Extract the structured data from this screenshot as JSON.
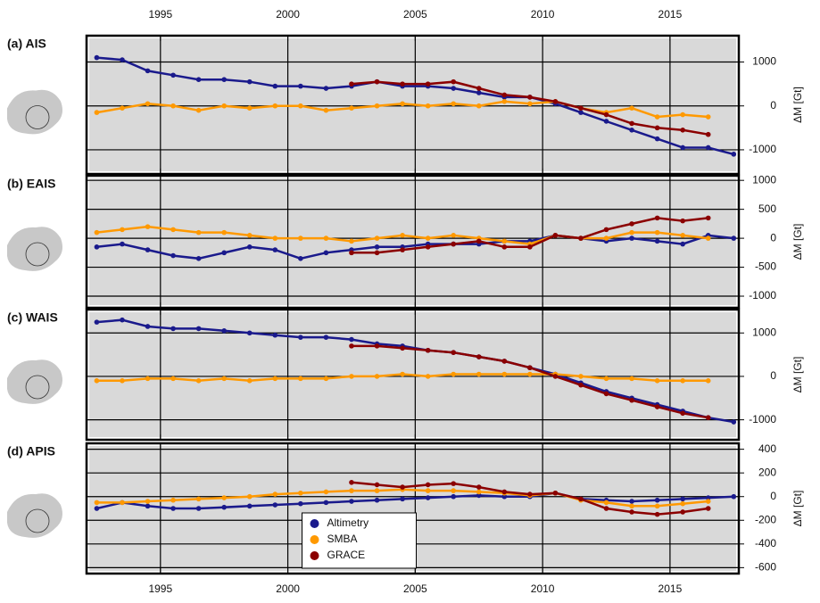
{
  "chart_data": [
    {
      "type": "line",
      "title": "(a) AIS",
      "ylabel": "ΔM [Gt]",
      "x": [
        1992.5,
        1993.5,
        1994.5,
        1995.5,
        1996.5,
        1997.5,
        1998.5,
        1999.5,
        2000.5,
        2001.5,
        2002.5,
        2003.5,
        2004.5,
        2005.5,
        2006.5,
        2007.5,
        2008.5,
        2009.5,
        2010.5,
        2011.5,
        2012.5,
        2013.5,
        2014.5,
        2015.5,
        2016.5,
        2017.5
      ],
      "series": [
        {
          "name": "Altimetry",
          "color": "#1a1a8c",
          "values": [
            1100,
            1050,
            800,
            700,
            600,
            600,
            550,
            450,
            450,
            400,
            450,
            550,
            450,
            450,
            400,
            300,
            200,
            200,
            50,
            -150,
            -350,
            -550,
            -750,
            -950,
            -950,
            -1100
          ]
        },
        {
          "name": "SMBA",
          "color": "#ff9900",
          "values": [
            -150,
            -50,
            50,
            0,
            -100,
            0,
            -50,
            0,
            0,
            -100,
            -50,
            0,
            50,
            0,
            50,
            0,
            100,
            50,
            100,
            -50,
            -150,
            -50,
            -250,
            -200,
            -250,
            null
          ]
        },
        {
          "name": "GRACE",
          "color": "#8b0000",
          "values": [
            null,
            null,
            null,
            null,
            null,
            null,
            null,
            null,
            null,
            null,
            500,
            550,
            500,
            500,
            550,
            400,
            250,
            200,
            100,
            -50,
            -200,
            -400,
            -500,
            -550,
            -650,
            null
          ]
        }
      ],
      "xlim": [
        1992.1,
        2017.7
      ],
      "xticks": [
        1995,
        2000,
        2005,
        2010,
        2015
      ],
      "ylim": [
        -1550,
        1600
      ],
      "yticks": [
        -1000,
        0,
        1000
      ],
      "grid": true
    },
    {
      "type": "line",
      "title": "(b) EAIS",
      "ylabel": "ΔM [Gt]",
      "x": [
        1992.5,
        1993.5,
        1994.5,
        1995.5,
        1996.5,
        1997.5,
        1998.5,
        1999.5,
        2000.5,
        2001.5,
        2002.5,
        2003.5,
        2004.5,
        2005.5,
        2006.5,
        2007.5,
        2008.5,
        2009.5,
        2010.5,
        2011.5,
        2012.5,
        2013.5,
        2014.5,
        2015.5,
        2016.5,
        2017.5
      ],
      "series": [
        {
          "name": "Altimetry",
          "color": "#1a1a8c",
          "values": [
            -150,
            -100,
            -200,
            -300,
            -350,
            -250,
            -150,
            -200,
            -350,
            -250,
            -200,
            -150,
            -150,
            -100,
            -100,
            -100,
            -50,
            -50,
            50,
            0,
            -50,
            0,
            -50,
            -100,
            50,
            0
          ]
        },
        {
          "name": "SMBA",
          "color": "#ff9900",
          "values": [
            100,
            150,
            200,
            150,
            100,
            100,
            50,
            0,
            0,
            0,
            -50,
            0,
            50,
            0,
            50,
            0,
            -50,
            -100,
            50,
            0,
            0,
            100,
            100,
            50,
            0,
            null
          ]
        },
        {
          "name": "GRACE",
          "color": "#8b0000",
          "values": [
            null,
            null,
            null,
            null,
            null,
            null,
            null,
            null,
            null,
            null,
            -250,
            -250,
            -200,
            -150,
            -100,
            -50,
            -150,
            -150,
            50,
            0,
            150,
            250,
            350,
            300,
            350,
            null
          ]
        }
      ],
      "xlim": [
        1992.1,
        2017.7
      ],
      "xticks": [
        1995,
        2000,
        2005,
        2010,
        2015
      ],
      "ylim": [
        -1200,
        1080
      ],
      "yticks": [
        -1000,
        -500,
        0,
        500,
        1000
      ],
      "grid": true
    },
    {
      "type": "line",
      "title": "(c) WAIS",
      "ylabel": "ΔM [Gt]",
      "x": [
        1992.5,
        1993.5,
        1994.5,
        1995.5,
        1996.5,
        1997.5,
        1998.5,
        1999.5,
        2000.5,
        2001.5,
        2002.5,
        2003.5,
        2004.5,
        2005.5,
        2006.5,
        2007.5,
        2008.5,
        2009.5,
        2010.5,
        2011.5,
        2012.5,
        2013.5,
        2014.5,
        2015.5,
        2016.5,
        2017.5
      ],
      "series": [
        {
          "name": "Altimetry",
          "color": "#1a1a8c",
          "values": [
            1250,
            1300,
            1150,
            1100,
            1100,
            1050,
            1000,
            950,
            900,
            900,
            850,
            750,
            700,
            600,
            550,
            450,
            350,
            200,
            50,
            -150,
            -350,
            -500,
            -650,
            -800,
            -950,
            -1050
          ]
        },
        {
          "name": "SMBA",
          "color": "#ff9900",
          "values": [
            -100,
            -100,
            -50,
            -50,
            -100,
            -50,
            -100,
            -50,
            -50,
            -50,
            0,
            0,
            50,
            0,
            50,
            50,
            50,
            50,
            50,
            0,
            -50,
            -50,
            -100,
            -100,
            -100,
            null
          ]
        },
        {
          "name": "GRACE",
          "color": "#8b0000",
          "values": [
            null,
            null,
            null,
            null,
            null,
            null,
            null,
            null,
            null,
            null,
            700,
            700,
            650,
            600,
            550,
            450,
            350,
            200,
            0,
            -200,
            -400,
            -550,
            -700,
            -850,
            -950,
            null
          ]
        }
      ],
      "xlim": [
        1992.1,
        2017.7
      ],
      "xticks": [
        1995,
        2000,
        2005,
        2010,
        2015
      ],
      "ylim": [
        -1460,
        1540
      ],
      "yticks": [
        -1000,
        0,
        1000
      ],
      "grid": true
    },
    {
      "type": "line",
      "title": "(d) APIS",
      "ylabel": "ΔM [Gt]",
      "x": [
        1992.5,
        1993.5,
        1994.5,
        1995.5,
        1996.5,
        1997.5,
        1998.5,
        1999.5,
        2000.5,
        2001.5,
        2002.5,
        2003.5,
        2004.5,
        2005.5,
        2006.5,
        2007.5,
        2008.5,
        2009.5,
        2010.5,
        2011.5,
        2012.5,
        2013.5,
        2014.5,
        2015.5,
        2016.5,
        2017.5
      ],
      "series": [
        {
          "name": "Altimetry",
          "color": "#1a1a8c",
          "values": [
            -100,
            -50,
            -80,
            -100,
            -100,
            -90,
            -80,
            -70,
            -60,
            -50,
            -40,
            -30,
            -20,
            -10,
            0,
            10,
            0,
            0,
            30,
            -20,
            -30,
            -40,
            -30,
            -20,
            -10,
            0
          ]
        },
        {
          "name": "SMBA",
          "color": "#ff9900",
          "values": [
            -50,
            -50,
            -40,
            -30,
            -20,
            -10,
            0,
            20,
            30,
            40,
            50,
            50,
            60,
            50,
            50,
            40,
            30,
            10,
            30,
            -30,
            -50,
            -80,
            -80,
            -60,
            -40,
            null
          ]
        },
        {
          "name": "GRACE",
          "color": "#8b0000",
          "values": [
            null,
            null,
            null,
            null,
            null,
            null,
            null,
            null,
            null,
            null,
            120,
            100,
            80,
            100,
            110,
            80,
            40,
            20,
            30,
            -20,
            -100,
            -130,
            -150,
            -130,
            -100,
            null
          ]
        }
      ],
      "xlim": [
        1992.1,
        2017.7
      ],
      "xticks": [
        1995,
        2000,
        2005,
        2010,
        2015
      ],
      "ylim": [
        -650,
        450
      ],
      "yticks": [
        -600,
        -400,
        -200,
        0,
        200,
        400
      ],
      "grid": true,
      "legend": "bottom-center"
    }
  ]
}
